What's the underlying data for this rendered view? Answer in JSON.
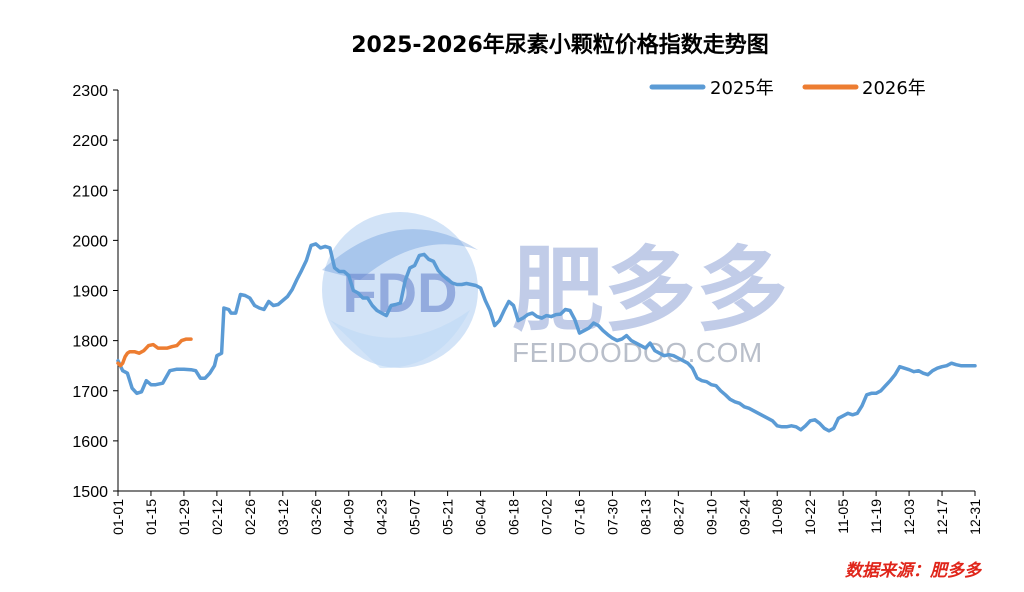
{
  "chart_data": {
    "type": "line",
    "title": "2025-2026年尿素小颗粒价格指数走势图",
    "xlabel": "",
    "ylabel": "",
    "ylim": [
      1500,
      2300
    ],
    "yticks": [
      1500,
      1600,
      1700,
      1800,
      1900,
      2000,
      2100,
      2200,
      2300
    ],
    "x_tick_labels": [
      "01-01",
      "01-15",
      "01-29",
      "02-12",
      "02-26",
      "03-12",
      "03-26",
      "04-09",
      "04-23",
      "05-07",
      "05-21",
      "06-04",
      "06-18",
      "07-02",
      "07-16",
      "07-30",
      "08-13",
      "08-27",
      "09-10",
      "09-24",
      "10-08",
      "10-22",
      "11-05",
      "11-19",
      "12-03",
      "12-17",
      "12-31"
    ],
    "x_axis": "day-of-year (MM-DD), Jan 01 to Dec 31",
    "grid": false,
    "legend_position": "top-right",
    "series": [
      {
        "name": "2025年",
        "color": "#5b9bd5",
        "points": [
          [
            "01-01",
            1760
          ],
          [
            "01-03",
            1740
          ],
          [
            "01-05",
            1735
          ],
          [
            "01-07",
            1705
          ],
          [
            "01-09",
            1695
          ],
          [
            "01-11",
            1698
          ],
          [
            "01-13",
            1720
          ],
          [
            "01-15",
            1712
          ],
          [
            "01-17",
            1712
          ],
          [
            "01-20",
            1715
          ],
          [
            "01-23",
            1740
          ],
          [
            "01-26",
            1743
          ],
          [
            "01-29",
            1743
          ],
          [
            "02-01",
            1742
          ],
          [
            "02-03",
            1740
          ],
          [
            "02-05",
            1725
          ],
          [
            "02-07",
            1725
          ],
          [
            "02-09",
            1735
          ],
          [
            "02-11",
            1750
          ],
          [
            "02-12",
            1770
          ],
          [
            "02-14",
            1775
          ],
          [
            "02-15",
            1865
          ],
          [
            "02-17",
            1862
          ],
          [
            "02-18",
            1855
          ],
          [
            "02-20",
            1855
          ],
          [
            "02-22",
            1892
          ],
          [
            "02-24",
            1890
          ],
          [
            "02-26",
            1885
          ],
          [
            "02-28",
            1870
          ],
          [
            "03-02",
            1865
          ],
          [
            "03-04",
            1862
          ],
          [
            "03-06",
            1878
          ],
          [
            "03-08",
            1870
          ],
          [
            "03-10",
            1872
          ],
          [
            "03-12",
            1880
          ],
          [
            "03-14",
            1888
          ],
          [
            "03-16",
            1902
          ],
          [
            "03-18",
            1922
          ],
          [
            "03-20",
            1940
          ],
          [
            "03-22",
            1960
          ],
          [
            "03-24",
            1990
          ],
          [
            "03-26",
            1993
          ],
          [
            "03-28",
            1985
          ],
          [
            "03-30",
            1988
          ],
          [
            "04-01",
            1985
          ],
          [
            "04-03",
            1945
          ],
          [
            "04-05",
            1938
          ],
          [
            "04-07",
            1938
          ],
          [
            "04-09",
            1930
          ],
          [
            "04-11",
            1900
          ],
          [
            "04-13",
            1895
          ],
          [
            "04-15",
            1885
          ],
          [
            "04-17",
            1885
          ],
          [
            "04-19",
            1870
          ],
          [
            "04-21",
            1860
          ],
          [
            "04-23",
            1855
          ],
          [
            "04-25",
            1850
          ],
          [
            "04-27",
            1870
          ],
          [
            "04-29",
            1872
          ],
          [
            "05-01",
            1875
          ],
          [
            "05-03",
            1920
          ],
          [
            "05-05",
            1945
          ],
          [
            "05-07",
            1950
          ],
          [
            "05-09",
            1970
          ],
          [
            "05-11",
            1972
          ],
          [
            "05-13",
            1962
          ],
          [
            "05-15",
            1958
          ],
          [
            "05-17",
            1940
          ],
          [
            "05-19",
            1930
          ],
          [
            "05-21",
            1922
          ],
          [
            "05-23",
            1915
          ],
          [
            "05-25",
            1912
          ],
          [
            "05-27",
            1912
          ],
          [
            "05-29",
            1914
          ],
          [
            "05-31",
            1912
          ],
          [
            "06-02",
            1910
          ],
          [
            "06-04",
            1905
          ],
          [
            "06-06",
            1880
          ],
          [
            "06-08",
            1860
          ],
          [
            "06-10",
            1830
          ],
          [
            "06-12",
            1840
          ],
          [
            "06-14",
            1860
          ],
          [
            "06-16",
            1878
          ],
          [
            "06-18",
            1870
          ],
          [
            "06-20",
            1840
          ],
          [
            "06-22",
            1845
          ],
          [
            "06-24",
            1852
          ],
          [
            "06-26",
            1855
          ],
          [
            "06-28",
            1848
          ],
          [
            "06-30",
            1845
          ],
          [
            "07-02",
            1850
          ],
          [
            "07-04",
            1848
          ],
          [
            "07-06",
            1852
          ],
          [
            "07-08",
            1853
          ],
          [
            "07-10",
            1862
          ],
          [
            "07-12",
            1860
          ],
          [
            "07-14",
            1842
          ],
          [
            "07-16",
            1815
          ],
          [
            "07-18",
            1820
          ],
          [
            "07-20",
            1825
          ],
          [
            "07-22",
            1835
          ],
          [
            "07-24",
            1830
          ],
          [
            "07-26",
            1820
          ],
          [
            "07-28",
            1812
          ],
          [
            "07-30",
            1805
          ],
          [
            "08-01",
            1800
          ],
          [
            "08-03",
            1803
          ],
          [
            "08-05",
            1810
          ],
          [
            "08-07",
            1800
          ],
          [
            "08-09",
            1795
          ],
          [
            "08-11",
            1790
          ],
          [
            "08-13",
            1785
          ],
          [
            "08-15",
            1795
          ],
          [
            "08-17",
            1780
          ],
          [
            "08-19",
            1775
          ],
          [
            "08-21",
            1770
          ],
          [
            "08-23",
            1772
          ],
          [
            "08-25",
            1770
          ],
          [
            "08-27",
            1765
          ],
          [
            "08-29",
            1760
          ],
          [
            "08-31",
            1755
          ],
          [
            "09-02",
            1745
          ],
          [
            "09-04",
            1725
          ],
          [
            "09-06",
            1720
          ],
          [
            "09-08",
            1718
          ],
          [
            "09-10",
            1712
          ],
          [
            "09-12",
            1710
          ],
          [
            "09-14",
            1700
          ],
          [
            "09-16",
            1692
          ],
          [
            "09-18",
            1683
          ],
          [
            "09-20",
            1678
          ],
          [
            "09-22",
            1675
          ],
          [
            "09-24",
            1668
          ],
          [
            "09-26",
            1665
          ],
          [
            "09-28",
            1660
          ],
          [
            "09-30",
            1655
          ],
          [
            "10-02",
            1650
          ],
          [
            "10-04",
            1645
          ],
          [
            "10-06",
            1640
          ],
          [
            "10-08",
            1630
          ],
          [
            "10-10",
            1628
          ],
          [
            "10-12",
            1628
          ],
          [
            "10-14",
            1630
          ],
          [
            "10-16",
            1628
          ],
          [
            "10-18",
            1622
          ],
          [
            "10-20",
            1630
          ],
          [
            "10-22",
            1640
          ],
          [
            "10-24",
            1642
          ],
          [
            "10-26",
            1635
          ],
          [
            "10-28",
            1625
          ],
          [
            "10-30",
            1620
          ],
          [
            "11-01",
            1625
          ],
          [
            "11-03",
            1645
          ],
          [
            "11-05",
            1650
          ],
          [
            "11-07",
            1655
          ],
          [
            "11-09",
            1652
          ],
          [
            "11-11",
            1655
          ],
          [
            "11-13",
            1670
          ],
          [
            "11-15",
            1692
          ],
          [
            "11-17",
            1695
          ],
          [
            "11-19",
            1695
          ],
          [
            "11-21",
            1700
          ],
          [
            "11-23",
            1710
          ],
          [
            "11-25",
            1720
          ],
          [
            "11-27",
            1732
          ],
          [
            "11-29",
            1748
          ],
          [
            "12-01",
            1745
          ],
          [
            "12-03",
            1742
          ],
          [
            "12-05",
            1738
          ],
          [
            "12-07",
            1740
          ],
          [
            "12-09",
            1735
          ],
          [
            "12-11",
            1732
          ],
          [
            "12-13",
            1740
          ],
          [
            "12-15",
            1745
          ],
          [
            "12-17",
            1748
          ],
          [
            "12-19",
            1750
          ],
          [
            "12-21",
            1755
          ],
          [
            "12-23",
            1752
          ],
          [
            "12-25",
            1750
          ],
          [
            "12-27",
            1750
          ],
          [
            "12-31",
            1750
          ]
        ]
      },
      {
        "name": "2026年",
        "color": "#ed7d31",
        "points": [
          [
            "01-01",
            1755
          ],
          [
            "01-02",
            1750
          ],
          [
            "01-03",
            1755
          ],
          [
            "01-04",
            1768
          ],
          [
            "01-05",
            1775
          ],
          [
            "01-06",
            1778
          ],
          [
            "01-08",
            1778
          ],
          [
            "01-10",
            1775
          ],
          [
            "01-12",
            1780
          ],
          [
            "01-14",
            1790
          ],
          [
            "01-16",
            1792
          ],
          [
            "01-18",
            1785
          ],
          [
            "01-20",
            1785
          ],
          [
            "01-22",
            1785
          ],
          [
            "01-24",
            1788
          ],
          [
            "01-26",
            1790
          ],
          [
            "01-28",
            1800
          ],
          [
            "01-30",
            1803
          ],
          [
            "02-01",
            1803
          ]
        ]
      }
    ]
  },
  "watermark": {
    "logo_text": "FDD",
    "brand_cn": "肥多多",
    "domain": "FEIDOODOO.COM"
  },
  "source_note": "数据来源：肥多多"
}
